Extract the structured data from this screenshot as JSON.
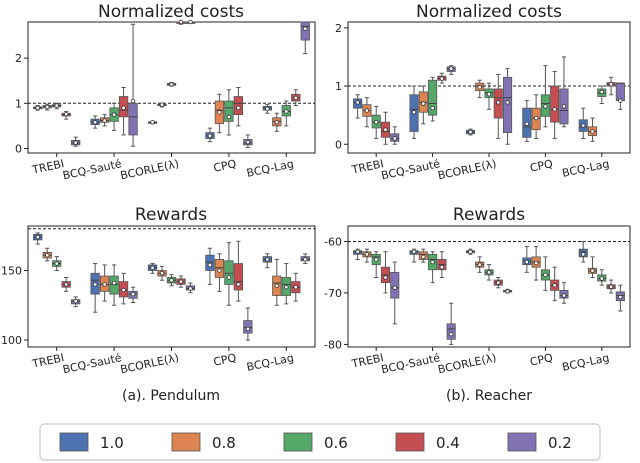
{
  "legend": [
    {
      "label": "1.0",
      "color": "#4c72b0"
    },
    {
      "label": "0.8",
      "color": "#dd8452"
    },
    {
      "label": "0.6",
      "color": "#55a868"
    },
    {
      "label": "0.4",
      "color": "#c44e52"
    },
    {
      "label": "0.2",
      "color": "#8172b3"
    }
  ],
  "captions": {
    "left": "(a). Pendulum",
    "right": "(b). Reacher"
  },
  "chart_data": [
    {
      "type": "box",
      "title": "Normalized costs",
      "ylim": [
        -0.1,
        2.8
      ],
      "yticks": [
        0,
        1,
        2
      ],
      "reference_line": 1,
      "categories": [
        "TREBI",
        "BCQ-Sauté",
        "BCORLE(λ)",
        "CPQ",
        "BCQ-Lag"
      ],
      "series_labels": [
        "1.0",
        "0.8",
        "0.6",
        "0.4",
        "0.2"
      ],
      "boxes": [
        [
          [
            0.85,
            0.88,
            0.9,
            0.92,
            0.95,
            0.9
          ],
          [
            0.85,
            0.9,
            0.93,
            0.95,
            0.98,
            0.92
          ],
          [
            0.88,
            0.92,
            0.95,
            0.97,
            1.0,
            0.95
          ],
          [
            0.65,
            0.72,
            0.75,
            0.78,
            0.82,
            0.76
          ],
          [
            0.05,
            0.08,
            0.12,
            0.18,
            0.25,
            0.13
          ]
        ],
        [
          [
            0.45,
            0.53,
            0.58,
            0.65,
            0.72,
            0.58
          ],
          [
            0.5,
            0.58,
            0.62,
            0.68,
            0.75,
            0.62
          ],
          [
            0.4,
            0.6,
            0.75,
            0.9,
            1.0,
            0.75
          ],
          [
            0.3,
            0.7,
            0.85,
            1.15,
            1.35,
            0.9
          ],
          [
            0.05,
            0.3,
            0.7,
            1.0,
            2.75,
            1.05
          ]
        ],
        [
          [
            0.55,
            0.57,
            0.58,
            0.59,
            0.6,
            0.58
          ],
          [
            0.92,
            0.95,
            0.97,
            0.98,
            1.0,
            0.97
          ],
          [
            1.38,
            1.4,
            1.42,
            1.44,
            1.46,
            1.42
          ],
          [
            2.75,
            2.8,
            2.83,
            2.86,
            2.9,
            2.83
          ],
          [
            2.85,
            2.9,
            2.95,
            2.98,
            3.0,
            2.95
          ]
        ],
        [
          [
            0.15,
            0.22,
            0.28,
            0.35,
            0.45,
            0.28
          ],
          [
            0.35,
            0.55,
            0.85,
            1.05,
            1.2,
            0.8
          ],
          [
            0.3,
            0.6,
            0.9,
            1.05,
            1.3,
            0.7
          ],
          [
            0.5,
            0.75,
            1.0,
            1.15,
            1.35,
            0.9
          ],
          [
            0.02,
            0.08,
            0.12,
            0.2,
            0.3,
            0.14
          ]
        ],
        [
          [
            0.78,
            0.85,
            0.9,
            0.93,
            0.97,
            0.88
          ],
          [
            0.38,
            0.5,
            0.6,
            0.68,
            0.78,
            0.58
          ],
          [
            0.5,
            0.72,
            0.82,
            0.95,
            1.05,
            0.82
          ],
          [
            0.95,
            1.05,
            1.12,
            1.2,
            1.3,
            1.12
          ],
          [
            2.1,
            2.4,
            2.7,
            3.0,
            3.0,
            2.65
          ]
        ]
      ]
    },
    {
      "type": "box",
      "title": "Normalized costs",
      "ylim": [
        -0.15,
        2.1
      ],
      "yticks": [
        0,
        1,
        2
      ],
      "reference_line": 1,
      "categories": [
        "TREBI",
        "BCQ-Sauté",
        "BCORLE(λ)",
        "CPQ",
        "BCQ-Lag"
      ],
      "series_labels": [
        "1.0",
        "0.8",
        "0.6",
        "0.4",
        "0.2"
      ],
      "boxes": [
        [
          [
            0.45,
            0.62,
            0.72,
            0.78,
            0.85,
            0.72
          ],
          [
            0.3,
            0.48,
            0.58,
            0.68,
            0.8,
            0.58
          ],
          [
            0.1,
            0.28,
            0.38,
            0.5,
            0.65,
            0.38
          ],
          [
            0.0,
            0.12,
            0.22,
            0.38,
            0.55,
            0.25
          ],
          [
            0.0,
            0.05,
            0.1,
            0.18,
            0.3,
            0.1
          ]
        ],
        [
          [
            0.1,
            0.22,
            0.6,
            0.85,
            1.0,
            0.55
          ],
          [
            0.35,
            0.55,
            0.72,
            0.9,
            1.0,
            0.7
          ],
          [
            0.4,
            0.5,
            0.7,
            1.1,
            1.15,
            0.62
          ],
          [
            1.05,
            1.1,
            1.13,
            1.17,
            1.22,
            1.13
          ],
          [
            1.2,
            1.25,
            1.3,
            1.33,
            1.35,
            1.3
          ]
        ],
        [
          [
            0.16,
            0.18,
            0.21,
            0.24,
            0.26,
            0.21
          ],
          [
            0.8,
            0.92,
            1.0,
            1.05,
            1.1,
            0.98
          ],
          [
            0.6,
            0.8,
            0.88,
            0.95,
            1.05,
            0.86
          ],
          [
            0.1,
            0.45,
            0.8,
            0.95,
            1.2,
            0.72
          ],
          [
            0.0,
            0.2,
            0.8,
            1.15,
            1.3,
            0.72
          ]
        ],
        [
          [
            0.05,
            0.12,
            0.3,
            0.62,
            0.75,
            0.35
          ],
          [
            0.1,
            0.25,
            0.45,
            0.62,
            0.85,
            0.45
          ],
          [
            0.3,
            0.48,
            0.7,
            0.85,
            1.35,
            0.65
          ],
          [
            0.1,
            0.38,
            0.6,
            1.0,
            1.25,
            0.6
          ],
          [
            0.3,
            0.35,
            0.58,
            0.95,
            1.5,
            0.65
          ]
        ],
        [
          [
            0.1,
            0.22,
            0.3,
            0.42,
            0.62,
            0.32
          ],
          [
            0.05,
            0.15,
            0.22,
            0.3,
            0.45,
            0.22
          ],
          [
            0.7,
            0.82,
            0.88,
            0.95,
            1.0,
            0.9
          ],
          [
            0.85,
            1.0,
            1.03,
            1.06,
            1.15,
            1.03
          ],
          [
            0.6,
            0.75,
            1.05,
            1.05,
            1.05,
            0.75
          ]
        ]
      ]
    },
    {
      "type": "box",
      "title": "Rewards",
      "ylim": [
        95,
        182
      ],
      "yticks": [
        100,
        150
      ],
      "reference_line": 180,
      "categories": [
        "TREBI",
        "BCQ-Sauté",
        "BCORLE(λ)",
        "CPQ",
        "BCQ-Lag"
      ],
      "series_labels": [
        "1.0",
        "0.8",
        "0.6",
        "0.4",
        "0.2"
      ],
      "boxes": [
        [
          [
            169,
            172,
            174,
            176,
            177,
            174
          ],
          [
            157,
            159,
            161,
            163,
            166,
            161
          ],
          [
            150,
            153,
            155,
            157,
            160,
            155
          ],
          [
            135,
            138,
            140,
            142,
            145,
            140
          ],
          [
            124,
            126,
            128,
            129,
            131,
            128
          ]
        ],
        [
          [
            120,
            133,
            143,
            148,
            155,
            140
          ],
          [
            128,
            135,
            140,
            146,
            154,
            140
          ],
          [
            125,
            133,
            140,
            146,
            154,
            141
          ],
          [
            126,
            131,
            136,
            142,
            148,
            136
          ],
          [
            127,
            130,
            133,
            135,
            138,
            133
          ]
        ],
        [
          [
            148,
            150,
            152,
            154,
            155,
            152
          ],
          [
            143,
            146,
            148,
            150,
            153,
            148
          ],
          [
            139,
            141,
            143,
            145,
            147,
            143
          ],
          [
            138,
            140,
            142,
            144,
            146,
            142
          ],
          [
            134,
            136,
            137,
            139,
            141,
            137
          ]
        ],
        [
          [
            140,
            150,
            156,
            161,
            166,
            154
          ],
          [
            135,
            145,
            152,
            158,
            162,
            150
          ],
          [
            125,
            140,
            148,
            157,
            170,
            145
          ],
          [
            128,
            136,
            142,
            155,
            171,
            140
          ],
          [
            100,
            105,
            109,
            114,
            123,
            108
          ]
        ],
        [
          [
            152,
            156,
            158,
            160,
            162,
            158
          ],
          [
            125,
            132,
            141,
            146,
            158,
            139
          ],
          [
            126,
            132,
            140,
            145,
            155,
            138
          ],
          [
            128,
            134,
            138,
            142,
            148,
            138
          ],
          [
            155,
            157,
            158,
            160,
            162,
            158
          ]
        ]
      ]
    },
    {
      "type": "box",
      "title": "Rewards",
      "ylim": [
        -80.5,
        -57
      ],
      "yticks": [
        -60,
        -70,
        -80
      ],
      "reference_line": -60,
      "categories": [
        "TREBI",
        "BCQ-Sauté",
        "BCORLE(λ)",
        "CPQ",
        "BCQ-Lag"
      ],
      "series_labels": [
        "1.0",
        "0.8",
        "0.6",
        "0.4",
        "0.2"
      ],
      "boxes": [
        [
          [
            -63.5,
            -62.5,
            -62,
            -61.8,
            -61.5,
            -62
          ],
          [
            -64,
            -63,
            -62.5,
            -62,
            -61.5,
            -62.5
          ],
          [
            -67,
            -64.5,
            -63,
            -62.5,
            -62,
            -63.5
          ],
          [
            -70,
            -68,
            -66.5,
            -65,
            -62,
            -67
          ],
          [
            -76,
            -71,
            -69,
            -66,
            -64,
            -69
          ]
        ],
        [
          [
            -64,
            -62.5,
            -62,
            -61.8,
            -61.5,
            -62
          ],
          [
            -64,
            -63.5,
            -62.5,
            -62,
            -61.5,
            -63
          ],
          [
            -68,
            -65.5,
            -63.5,
            -62.5,
            -62,
            -64
          ],
          [
            -67,
            -65.5,
            -64.5,
            -63.5,
            -62,
            -65
          ],
          [
            -80,
            -79,
            -77,
            -76,
            -72,
            -78
          ]
        ],
        [
          [
            -62.5,
            -62.2,
            -62,
            -61.8,
            -61.5,
            -62
          ],
          [
            -66,
            -65,
            -64.5,
            -64,
            -63,
            -64.5
          ],
          [
            -67.5,
            -66.5,
            -66,
            -65.5,
            -64.5,
            -66
          ],
          [
            -69,
            -68.5,
            -68,
            -67.5,
            -67,
            -68
          ],
          [
            -70,
            -69.8,
            -69.7,
            -69.5,
            -69.3,
            -69.7
          ]
        ],
        [
          [
            -66,
            -64.5,
            -63.8,
            -63.2,
            -61,
            -64
          ],
          [
            -67.5,
            -65,
            -64,
            -63,
            -61,
            -64.2
          ],
          [
            -69.5,
            -67.5,
            -66.5,
            -65.5,
            -63,
            -66.5
          ],
          [
            -71.5,
            -69.5,
            -68.5,
            -67.5,
            -65,
            -68.5
          ],
          [
            -72,
            -71,
            -70.5,
            -69.5,
            -68,
            -70.5
          ]
        ],
        [
          [
            -64,
            -63,
            -62,
            -61.5,
            -60,
            -62.5
          ],
          [
            -67,
            -66.2,
            -65.7,
            -65.2,
            -63,
            -65.7
          ],
          [
            -68.5,
            -67.7,
            -67.2,
            -66.5,
            -65.5,
            -67.2
          ],
          [
            -70,
            -69.2,
            -68.8,
            -68.4,
            -67.5,
            -68.8
          ],
          [
            -73.5,
            -71.5,
            -70.5,
            -69.8,
            -68.5,
            -70.8
          ]
        ]
      ]
    }
  ]
}
